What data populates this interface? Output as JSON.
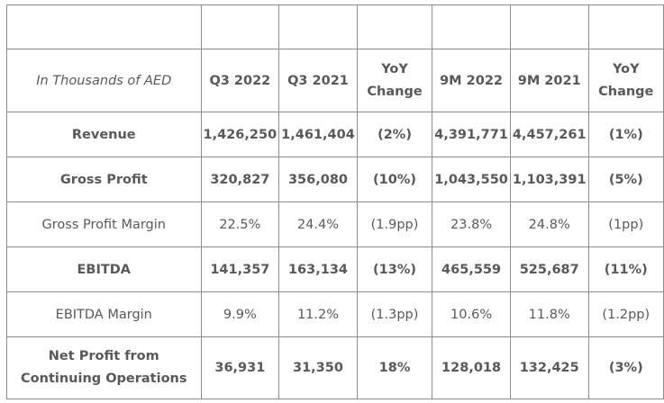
{
  "table": {
    "header": {
      "unit_label": "In Thousands of AED",
      "columns": [
        "Q3 2022",
        "Q3 2021",
        "YoY Change",
        "9M 2022",
        "9M 2021",
        "YoY Change"
      ]
    },
    "rows": [
      {
        "label": "Revenue",
        "values": [
          "1,426,250",
          "1,461,404",
          "(2%)",
          "4,391,771",
          "4,457,261",
          "(1%)"
        ]
      },
      {
        "label": "Gross Profit",
        "values": [
          "320,827",
          "356,080",
          "(10%)",
          "1,043,550",
          "1,103,391",
          "(5%)"
        ]
      },
      {
        "label": "Gross Profit Margin",
        "values": [
          "22.5%",
          "24.4%",
          "(1.9pp)",
          "23.8%",
          "24.8%",
          "(1pp)"
        ]
      },
      {
        "label": "EBITDA",
        "values": [
          "141,357",
          "163,134",
          "(13%)",
          "465,559",
          "525,687",
          "(11%)"
        ]
      },
      {
        "label": "EBITDA Margin",
        "values": [
          "9.9%",
          "11.2%",
          "(1.3pp)",
          "10.6%",
          "11.8%",
          "(1.2pp)"
        ]
      },
      {
        "label": "Net Profit from Continuing Operations",
        "values": [
          "36,931",
          "31,350",
          "18%",
          "128,018",
          "132,425",
          "(3%)"
        ]
      }
    ]
  }
}
